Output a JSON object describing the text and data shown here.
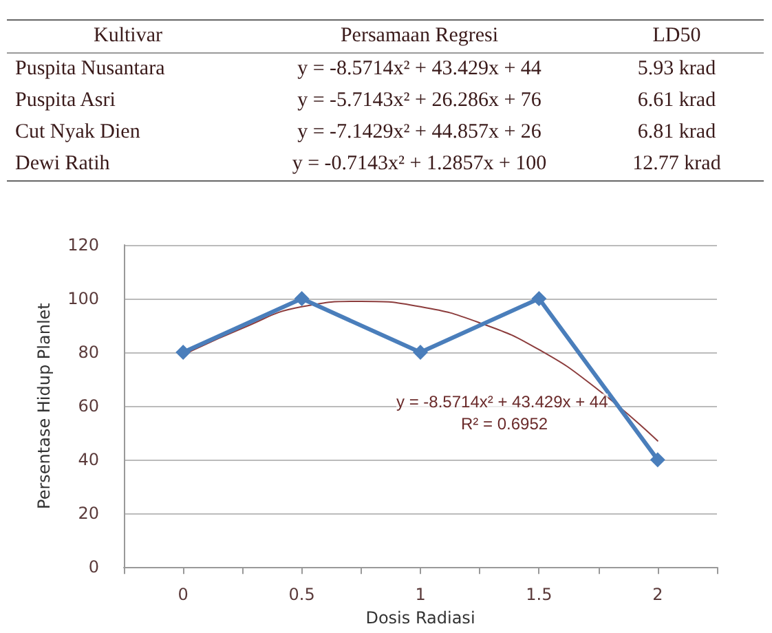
{
  "chart_data": {
    "type": "line",
    "x": [
      0,
      0.5,
      1,
      1.5,
      2
    ],
    "xlim": [
      -0.25,
      2.25
    ],
    "xticks": [
      {
        "value": -0.25,
        "label": null
      },
      0,
      {
        "value": 0.25,
        "label": null
      },
      0.5,
      {
        "value": 0.75,
        "label": null
      },
      1,
      {
        "value": 1.25,
        "label": null
      },
      1.5,
      {
        "value": 1.75,
        "label": null
      },
      2,
      {
        "value": 2.25,
        "label": null
      }
    ],
    "xlabel": "Dosis Radiasi",
    "ylabel": "Persentase Hidup Planlet",
    "ylim": [
      0,
      120
    ],
    "yticks": [
      0,
      20,
      40,
      60,
      80,
      100,
      120
    ],
    "grid": "y",
    "marker": "diamond",
    "line_style": "solid",
    "series": [
      {
        "color": "#4a7ebb",
        "values": [
          80,
          100,
          80,
          100,
          40
        ]
      },
      {
        "color": "#8c3c3c",
        "marker": "none",
        "x": [
          0,
          0.25,
          0.5,
          0.75,
          1,
          1.25,
          1.5,
          1.75,
          2
        ],
        "values": [
          79,
          89,
          97,
          99,
          97,
          91,
          81,
          66,
          47
        ]
      }
    ],
    "annotations": [
      "Kultivar",
      "Persamaan Regresi",
      "LD50",
      "Puspita Nusantara",
      "y = -8.5714x² + 43.429x + 44",
      "5.93 krad",
      "Puspita Asri",
      "y = -5.7143x² + 26.286x + 76",
      "6.61 krad",
      "Cut Nyak Dien",
      "y = -7.1429x² + 44.857x + 26",
      "6.81 krad",
      "Dewi Ratih",
      "y = -0.7143x² + 1.2857x + 100",
      "12.77 krad",
      "y = -8.5714x² + 43.429x + 44",
      "R² = 0.6952"
    ]
  }
}
